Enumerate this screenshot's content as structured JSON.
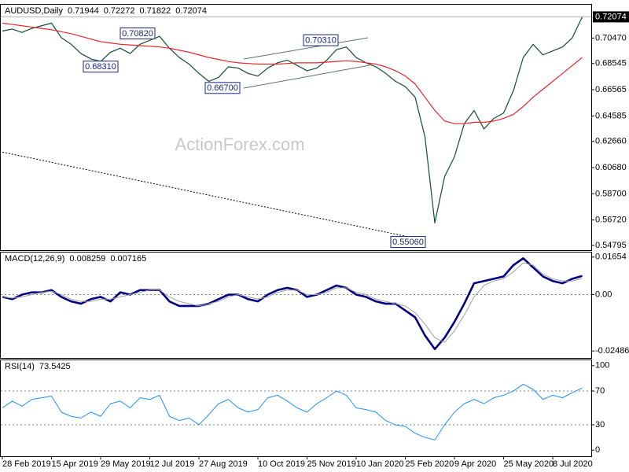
{
  "chart_data": [
    {
      "type": "line",
      "title": "AUDUSD,Daily",
      "header_values": [
        0.71944,
        0.72272,
        0.71822,
        0.72074
      ],
      "watermark": "ActionForex.com",
      "last_price": 0.72074,
      "categories": [
        "28 Feb 2019",
        null,
        null,
        null,
        null,
        "15 Apr 2019",
        null,
        null,
        null,
        null,
        "29 May 2019",
        null,
        null,
        null,
        null,
        "12 Jul 2019",
        null,
        null,
        null,
        null,
        "27 Aug 2019",
        null,
        null,
        null,
        null,
        null,
        "10 Oct 2019",
        null,
        null,
        null,
        null,
        "25 Nov 2019",
        null,
        null,
        null,
        null,
        "10 Jan 2020",
        null,
        null,
        null,
        null,
        "25 Feb 2020",
        null,
        null,
        null,
        null,
        "9 Apr 2020",
        null,
        null,
        null,
        null,
        "25 May 2020",
        null,
        null,
        null,
        null,
        "8 Jul 2020",
        null,
        null,
        null
      ],
      "series": [
        {
          "color": "#124a36",
          "width": 1.2,
          "dash": false,
          "values": [
            0.71,
            0.7115,
            0.709,
            0.712,
            0.714,
            0.716,
            0.705,
            0.7,
            0.693,
            0.689,
            0.687,
            0.694,
            0.697,
            0.693,
            0.7,
            0.703,
            0.706,
            0.697,
            0.69,
            0.685,
            0.678,
            0.672,
            0.675,
            0.683,
            0.682,
            0.678,
            0.676,
            0.682,
            0.686,
            0.688,
            0.684,
            0.68,
            0.682,
            0.688,
            0.696,
            0.698,
            0.69,
            0.686,
            0.683,
            0.678,
            0.672,
            0.668,
            0.66,
            0.63,
            0.565,
            0.6,
            0.615,
            0.64,
            0.65,
            0.636,
            0.644,
            0.648,
            0.665,
            0.69,
            0.7,
            0.692,
            0.695,
            0.698,
            0.705,
            0.7207
          ]
        },
        {
          "color": "#e8262b",
          "width": 1.2,
          "dash": false,
          "values": [
            0.716,
            0.715,
            0.714,
            0.713,
            0.712,
            0.711,
            0.7095,
            0.708,
            0.706,
            0.704,
            0.702,
            0.701,
            0.7,
            0.6995,
            0.699,
            0.6985,
            0.698,
            0.697,
            0.6955,
            0.694,
            0.692,
            0.69,
            0.6885,
            0.687,
            0.686,
            0.6855,
            0.685,
            0.685,
            0.685,
            0.6855,
            0.686,
            0.686,
            0.686,
            0.6865,
            0.687,
            0.6875,
            0.687,
            0.686,
            0.685,
            0.683,
            0.68,
            0.676,
            0.67,
            0.66,
            0.65,
            0.642,
            0.64,
            0.64,
            0.641,
            0.641,
            0.642,
            0.644,
            0.647,
            0.653,
            0.66,
            0.666,
            0.672,
            0.678,
            0.684,
            0.69
          ]
        },
        {
          "color": "#000000",
          "width": 1,
          "dash": true,
          "values": [
            0.6185,
            0.617,
            0.6154,
            0.6139,
            0.6123,
            0.6108,
            0.6092,
            0.6077,
            0.6061,
            0.6046,
            0.603,
            0.6015,
            0.5999,
            0.5984,
            0.5968,
            0.5953,
            0.5937,
            0.5922,
            0.5906,
            0.5891,
            0.5875,
            0.586,
            0.5844,
            0.5829,
            0.5813,
            0.5798,
            0.5782,
            0.5767,
            0.5751,
            0.5736,
            0.572,
            0.5705,
            0.5689,
            0.5674,
            0.5658,
            0.5643,
            0.5627,
            0.5612,
            0.5596,
            0.5581,
            0.5565,
            0.555,
            null,
            null,
            null,
            null,
            null,
            null,
            null,
            null,
            null,
            null,
            null,
            null,
            null,
            null,
            null,
            null,
            null,
            null
          ]
        }
      ],
      "annotations": [
        {
          "value": 0.7082,
          "label": "0.70820"
        },
        {
          "value": 0.6831,
          "label": "0.68310"
        },
        {
          "value": 0.667,
          "label": "0.66700"
        },
        {
          "value": 0.7031,
          "label": "0.70310"
        },
        {
          "value": 0.5506,
          "label": "0.55060"
        }
      ],
      "ylim": [
        0.5444,
        0.7305
      ],
      "yticks": [
        {
          "value": 0.7047,
          "label": "0.70470"
        },
        {
          "value": 0.68545,
          "label": "0.68545"
        },
        {
          "value": 0.66565,
          "label": "0.66565"
        },
        {
          "value": 0.64585,
          "label": "0.64585"
        },
        {
          "value": 0.6266,
          "label": "0.62660"
        },
        {
          "value": 0.6068,
          "label": "0.60680"
        },
        {
          "value": 0.587,
          "label": "0.58700"
        },
        {
          "value": 0.5672,
          "label": "0.56720"
        },
        {
          "value": 0.54795,
          "label": "0.54795"
        }
      ]
    },
    {
      "type": "line",
      "title": "MACD(12,26,9)",
      "header_values": [
        0.008259,
        0.007165
      ],
      "series": [
        {
          "color": "#000080",
          "width": 2.6,
          "dash": false,
          "values": [
            -0.001,
            -0.002,
            0.0,
            0.001,
            0.001,
            0.002,
            -0.001,
            -0.003,
            -0.004,
            -0.002,
            -0.001,
            -0.003,
            0.001,
            0.0,
            0.002,
            0.002,
            0.002,
            -0.003,
            -0.005,
            -0.005,
            -0.005,
            -0.004,
            -0.002,
            0.0,
            0.0,
            -0.002,
            -0.003,
            0.0,
            0.002,
            0.003,
            0.002,
            -0.001,
            0.0,
            0.002,
            0.004,
            0.003,
            0.0,
            -0.001,
            -0.003,
            -0.004,
            -0.004,
            -0.007,
            -0.01,
            -0.018,
            -0.024,
            -0.019,
            -0.012,
            -0.004,
            0.005,
            0.006,
            0.007,
            0.008,
            0.013,
            0.016,
            0.012,
            0.008,
            0.006,
            0.005,
            0.007,
            0.008259
          ]
        },
        {
          "color": "#a0a0a0",
          "width": 1,
          "dash": false,
          "values": [
            -0.001,
            -0.0015,
            -0.001,
            0.0,
            0.001,
            0.0015,
            0.0,
            -0.002,
            -0.003,
            -0.003,
            -0.002,
            -0.002,
            -0.001,
            0.0,
            0.001,
            0.002,
            0.002,
            -0.001,
            -0.003,
            -0.004,
            -0.005,
            -0.004,
            -0.003,
            -0.001,
            0.0,
            -0.001,
            -0.002,
            -0.001,
            0.001,
            0.002,
            0.002,
            0.0,
            0.0,
            0.001,
            0.003,
            0.003,
            0.001,
            0.0,
            -0.002,
            -0.003,
            -0.004,
            -0.005,
            -0.008,
            -0.013,
            -0.019,
            -0.021,
            -0.016,
            -0.009,
            -0.001,
            0.004,
            0.006,
            0.007,
            0.01,
            0.014,
            0.013,
            0.009,
            0.007,
            0.006,
            0.006,
            0.007165
          ]
        }
      ],
      "level_lines": [
        0
      ],
      "ylim": [
        -0.0279,
        0.0189
      ],
      "yticks": [
        0.01654,
        {
          "value": 0,
          "label": "0.00"
        },
        -0.02486
      ]
    },
    {
      "type": "line",
      "title": "RSI(14)",
      "header_values": [
        73.5425
      ],
      "series": [
        {
          "color": "#1e90ff",
          "width": 1,
          "dash": false,
          "values": [
            50,
            58,
            52,
            60,
            62,
            64,
            45,
            40,
            38,
            45,
            40,
            55,
            58,
            50,
            62,
            60,
            65,
            40,
            35,
            38,
            30,
            42,
            55,
            60,
            50,
            45,
            48,
            62,
            65,
            58,
            50,
            45,
            55,
            62,
            70,
            65,
            50,
            48,
            45,
            35,
            30,
            28,
            20,
            15,
            12,
            30,
            45,
            55,
            60,
            55,
            62,
            65,
            70,
            78,
            72,
            60,
            65,
            62,
            68,
            73.5425
          ]
        }
      ],
      "level_lines": [
        70,
        30
      ],
      "ylim": [
        -7.3,
        107.3
      ],
      "yticks": [
        100,
        70,
        30,
        0
      ]
    }
  ]
}
